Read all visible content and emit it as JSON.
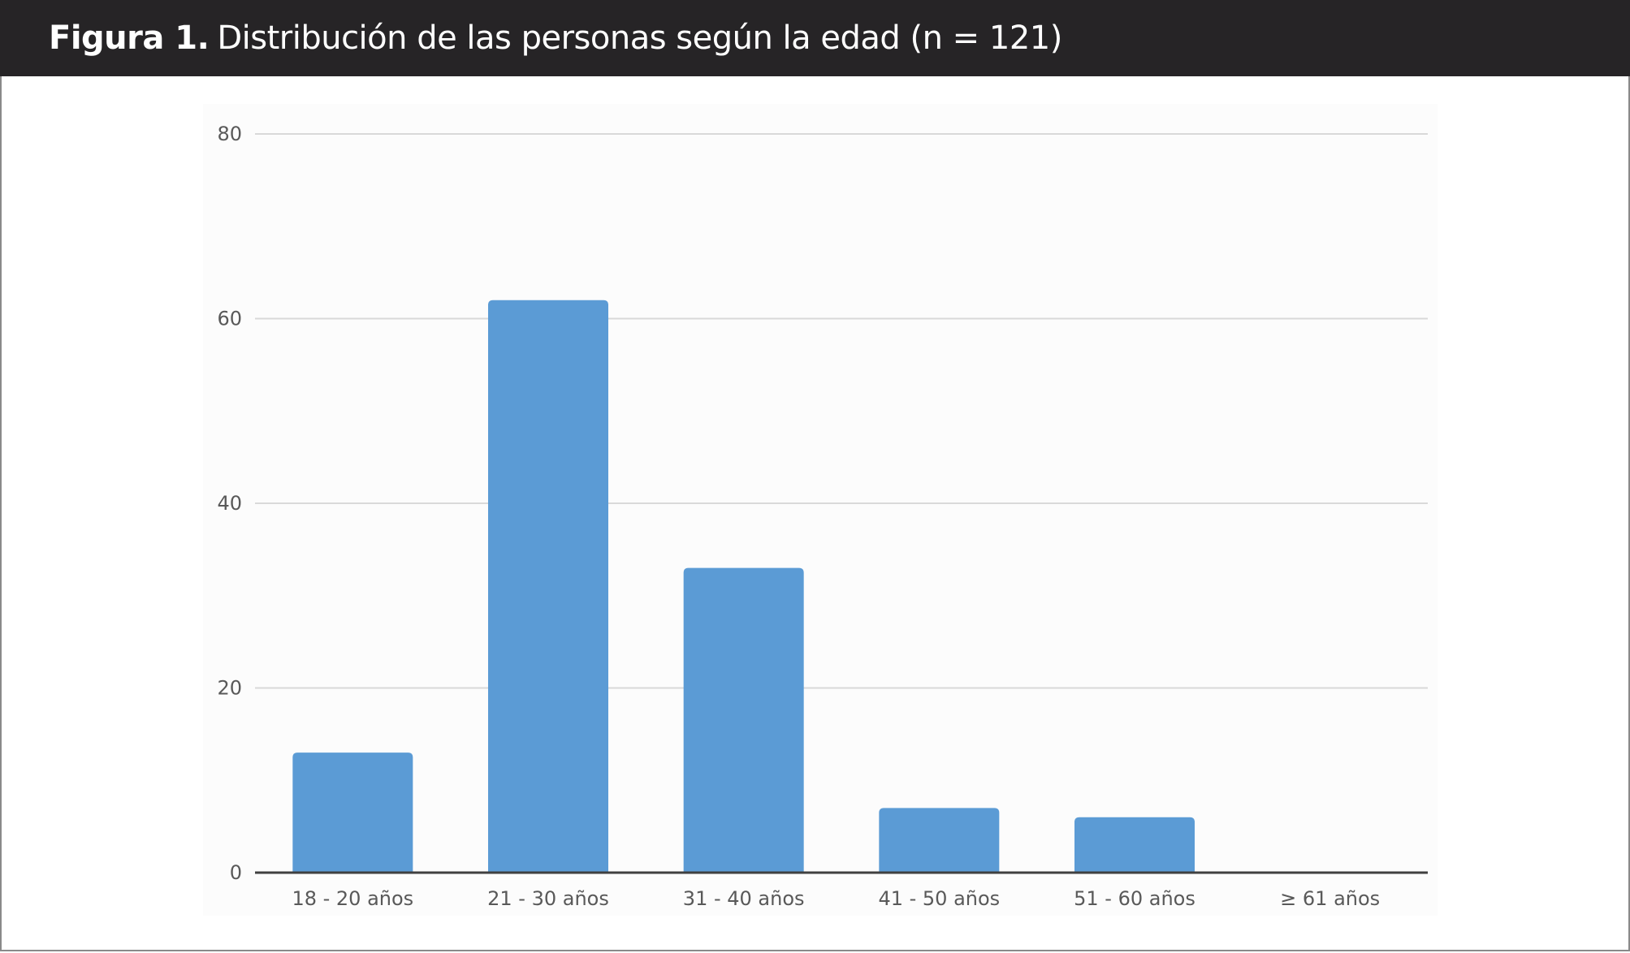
{
  "caption": {
    "label": "Figura 1.",
    "text": "Distribución de las personas según la edad (n = 121)"
  },
  "chart_data": {
    "type": "bar",
    "categories": [
      "18 - 20 años",
      "21 - 30 años",
      "31 - 40 años",
      "41 - 50 años",
      "51 - 60 años",
      "≥ 61 años"
    ],
    "values": [
      13,
      62,
      33,
      7,
      6,
      0
    ],
    "ylim": [
      0,
      80
    ],
    "yticks": [
      0,
      20,
      40,
      60,
      80
    ],
    "grid": true,
    "bar_color": "#5b9bd5",
    "grid_color": "#d9d9d9",
    "axis_color": "#404040"
  }
}
